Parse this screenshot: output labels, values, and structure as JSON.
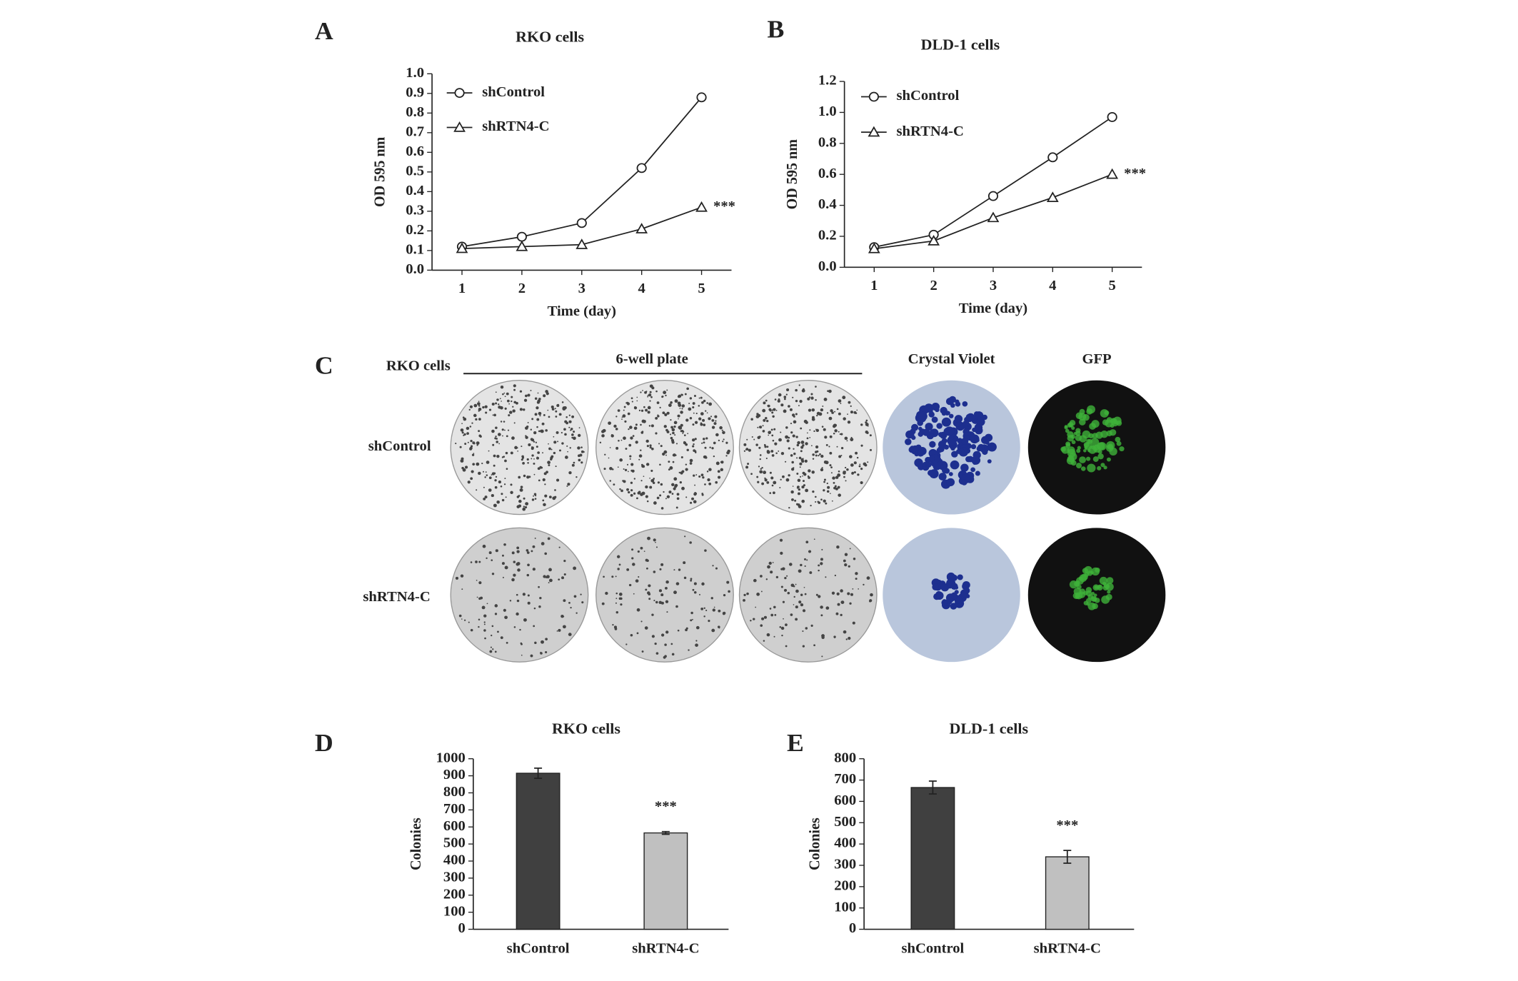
{
  "chart_data": [
    {
      "type": "line",
      "panel": "A",
      "title": "RKO cells",
      "x_label": "Time (day)",
      "y_label": "OD 595 nm",
      "annotation": "***",
      "x": [
        1,
        2,
        3,
        4,
        5
      ],
      "xlim": [
        0.5,
        5.5
      ],
      "xticks": [
        1,
        2,
        3,
        4,
        5
      ],
      "ylim": [
        0,
        1
      ],
      "yticks": [
        {
          "value": 0,
          "label": "0.0"
        },
        0.1,
        0.2,
        0.3,
        0.4,
        0.5,
        0.6,
        0.7,
        0.8,
        0.9,
        {
          "value": 1,
          "label": "1.0"
        }
      ],
      "series": [
        {
          "name": "shControl",
          "color": "#222222",
          "marker": "circle",
          "values": [
            0.12,
            0.17,
            0.24,
            0.52,
            0.88
          ]
        },
        {
          "name": "shRTN4-C",
          "color": "#222222",
          "marker": "triangle",
          "values": [
            0.11,
            0.12,
            0.13,
            0.21,
            0.32
          ]
        }
      ]
    },
    {
      "type": "line",
      "panel": "B",
      "title": "DLD-1 cells",
      "x_label": "Time (day)",
      "y_label": "OD 595 nm",
      "annotation": "***",
      "x": [
        1,
        2,
        3,
        4,
        5
      ],
      "xlim": [
        0.5,
        5.5
      ],
      "xticks": [
        1,
        2,
        3,
        4,
        5
      ],
      "ylim": [
        0,
        1.2
      ],
      "yticks": [
        {
          "value": 0,
          "label": "0.0"
        },
        0.2,
        0.4,
        0.6,
        0.8,
        {
          "value": 1,
          "label": "1.0"
        },
        1.2
      ],
      "series": [
        {
          "name": "shControl",
          "color": "#222222",
          "marker": "circle",
          "values": [
            0.13,
            0.21,
            0.46,
            0.71,
            0.97
          ]
        },
        {
          "name": "shRTN4-C",
          "color": "#222222",
          "marker": "triangle",
          "values": [
            0.12,
            0.17,
            0.32,
            0.45,
            0.6
          ]
        }
      ]
    },
    {
      "type": "bar",
      "panel": "D",
      "title": "RKO cells",
      "y_label": "Colonies",
      "annotation": "***",
      "categories": [
        "shControl",
        "shRTN4-C"
      ],
      "values": [
        915,
        565
      ],
      "errors": [
        30,
        8
      ],
      "colors": [
        "#404040",
        "#c0c0c0"
      ],
      "ylim": [
        0,
        1000
      ],
      "yticks": [
        0,
        100,
        200,
        300,
        400,
        500,
        600,
        700,
        800,
        900,
        1000
      ]
    },
    {
      "type": "bar",
      "panel": "E",
      "title": "DLD-1 cells",
      "y_label": "Colonies",
      "annotation": "***",
      "categories": [
        "shControl",
        "shRTN4-C"
      ],
      "values": [
        665,
        340
      ],
      "errors": [
        30,
        30
      ],
      "colors": [
        "#404040",
        "#c0c0c0"
      ],
      "ylim": [
        0,
        800
      ],
      "yticks": [
        0,
        100,
        200,
        300,
        400,
        500,
        600,
        700,
        800
      ]
    }
  ],
  "panel_c": {
    "panel": "C",
    "cell_line": "RKO cells",
    "plate_label": "6-well plate",
    "stain_label": "Crystal Violet",
    "gfp_label": "GFP",
    "rows": [
      "shControl",
      "shRTN4-C"
    ]
  }
}
